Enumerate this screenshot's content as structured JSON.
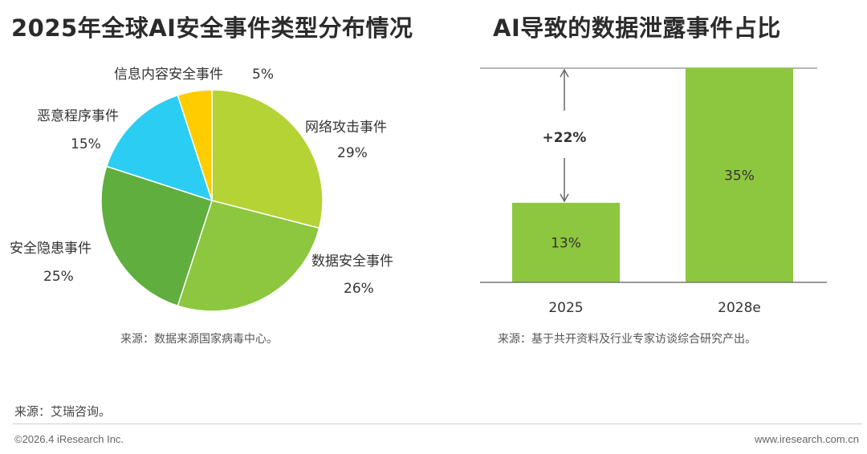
{
  "chart_data": [
    {
      "type": "pie",
      "title": "2025年全球AI安全事件类型分布情况",
      "slices": [
        {
          "label": "网络攻击事件",
          "value": 29,
          "value_label": "29%",
          "color": "#b5d334"
        },
        {
          "label": "数据安全事件",
          "value": 26,
          "value_label": "26%",
          "color": "#8dc63f"
        },
        {
          "label": "安全隐患事件",
          "value": 25,
          "value_label": "25%",
          "color": "#5fae3e"
        },
        {
          "label": "恶意程序事件",
          "value": 15,
          "value_label": "15%",
          "color": "#2ccdf2"
        },
        {
          "label": "信息内容安全事件",
          "value": 5,
          "value_label": "5%",
          "color": "#ffcc00"
        }
      ],
      "source": "来源：数据来源国家病毒中心。"
    },
    {
      "type": "bar",
      "title": "AI导致的数据泄露事件占比",
      "categories": [
        "2025",
        "2028e"
      ],
      "values": [
        13,
        35
      ],
      "value_labels": [
        "13%",
        "35%"
      ],
      "ylim": [
        0,
        35
      ],
      "bar_color": "#8dc63f",
      "annotation": "+22%",
      "source": "来源：基于共开资料及行业专家访谈综合研究产出。"
    }
  ],
  "footer": {
    "source": "来源：艾瑞咨询。",
    "copyright": "©2026.4 iResearch Inc.",
    "website": "www.iresearch.com.cn"
  }
}
